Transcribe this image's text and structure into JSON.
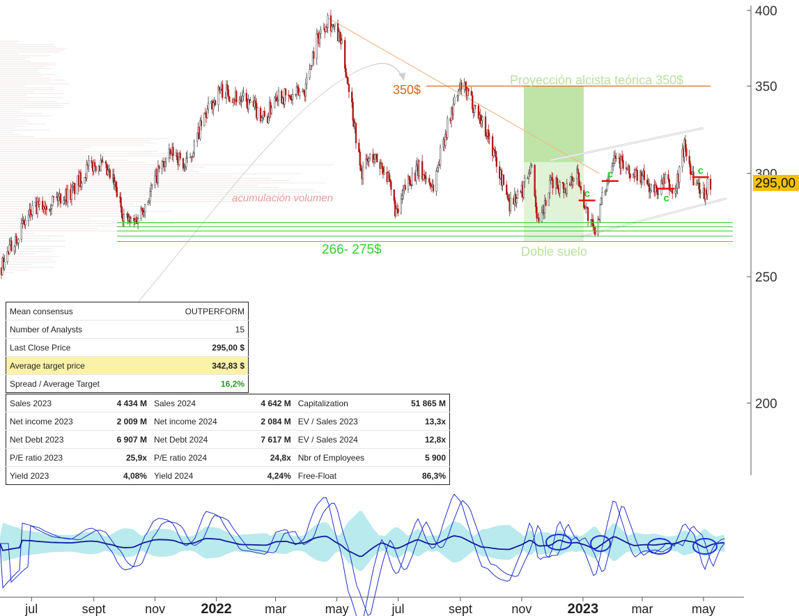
{
  "price_label": "295,00",
  "consensus": [
    {
      "label": "Mean consensus",
      "value": "OUTPERFORM",
      "style": "plain"
    },
    {
      "label": "Number of Analysts",
      "value": "15",
      "style": "plain"
    },
    {
      "label": "Last Close Price",
      "value": "295,00 $",
      "style": "bold"
    },
    {
      "label": "Average target price",
      "value": "342,83 $",
      "style": "highlight"
    },
    {
      "label": "Spread / Average Target",
      "value": "16,2%",
      "style": "green"
    }
  ],
  "fundamentals": [
    [
      "Sales 2023",
      "4 434 M",
      "Sales 2024",
      "4 642 M",
      "Capitalization",
      "51 865 M"
    ],
    [
      "Net income 2023",
      "2 009 M",
      "Net income 2024",
      "2 084 M",
      "EV / Sales 2023",
      "13,3x"
    ],
    [
      "Net Debt 2023",
      "6 907 M",
      "Net Debt 2024",
      "7 617 M",
      "EV / Sales 2024",
      "12,8x"
    ],
    [
      "P/E ratio 2023",
      "25,9x",
      "P/E ratio 2024",
      "24,8x",
      "Nbr of Employees",
      "5 900"
    ],
    [
      "Yield 2023",
      "4,08%",
      "Yield 2024",
      "4,24%",
      "Free-Float",
      "86,3%"
    ]
  ],
  "annotations": {
    "resistance": "350$",
    "projection": "Proyección alcista teórica 350$",
    "volume": "acumulación volumen",
    "support": "266- 275$",
    "double_bottom": "Doble suelo",
    "c_marks": [
      "c",
      "c",
      "c",
      "c"
    ]
  },
  "colors": {
    "candle_up": "#3a3a3a",
    "candle_down": "#b01818",
    "support_line": "#37c837",
    "resistance_line": "#d2691e",
    "projection_fill": "#a8dc8a",
    "price_box": "#f5c000",
    "oscillator_line": "#1f2fc8",
    "oscillator_band": "#7fd8df"
  },
  "chart_data": {
    "type": "candlestick",
    "y_scale": "log",
    "ylim": [
      172,
      404
    ],
    "y_ticks": [
      400,
      350,
      300,
      250,
      200
    ],
    "x_ticks": [
      "jul",
      "sept",
      "nov",
      "2022",
      "mar",
      "may",
      "jul",
      "sept",
      "nov",
      "2023",
      "mar",
      "may"
    ],
    "x_tick_dates": [
      "2021-07",
      "2021-09",
      "2021-11",
      "2022-01",
      "2022-03",
      "2022-05",
      "2022-07",
      "2022-09",
      "2022-11",
      "2023-01",
      "2023-03",
      "2023-05"
    ],
    "last_close": 295.0,
    "price_path": [
      [
        "2021-06-01",
        254
      ],
      [
        "2021-06-15",
        268
      ],
      [
        "2021-07-01",
        280
      ],
      [
        "2021-07-20",
        286
      ],
      [
        "2021-08-10",
        290
      ],
      [
        "2021-08-25",
        302
      ],
      [
        "2021-09-05",
        306
      ],
      [
        "2021-09-20",
        296
      ],
      [
        "2021-10-01",
        278
      ],
      [
        "2021-10-10",
        274
      ],
      [
        "2021-10-25",
        287
      ],
      [
        "2021-11-05",
        302
      ],
      [
        "2021-11-20",
        312
      ],
      [
        "2021-12-01",
        303
      ],
      [
        "2021-12-10",
        315
      ],
      [
        "2021-12-20",
        331
      ],
      [
        "2022-01-05",
        348
      ],
      [
        "2022-01-20",
        344
      ],
      [
        "2022-02-05",
        338
      ],
      [
        "2022-02-20",
        330
      ],
      [
        "2022-03-01",
        346
      ],
      [
        "2022-03-15",
        342
      ],
      [
        "2022-03-30",
        348
      ],
      [
        "2022-04-10",
        378
      ],
      [
        "2022-04-22",
        395
      ],
      [
        "2022-05-05",
        378
      ],
      [
        "2022-05-15",
        342
      ],
      [
        "2022-05-25",
        300
      ],
      [
        "2022-06-05",
        310
      ],
      [
        "2022-06-18",
        302
      ],
      [
        "2022-06-30",
        278
      ],
      [
        "2022-07-10",
        296
      ],
      [
        "2022-07-22",
        302
      ],
      [
        "2022-08-05",
        293
      ],
      [
        "2022-08-15",
        318
      ],
      [
        "2022-08-25",
        338
      ],
      [
        "2022-09-02",
        350
      ],
      [
        "2022-09-15",
        338
      ],
      [
        "2022-09-28",
        322
      ],
      [
        "2022-10-10",
        300
      ],
      [
        "2022-10-20",
        285
      ],
      [
        "2022-11-01",
        290
      ],
      [
        "2022-11-10",
        306
      ],
      [
        "2022-11-18",
        272
      ],
      [
        "2022-12-01",
        296
      ],
      [
        "2022-12-15",
        292
      ],
      [
        "2022-12-25",
        302
      ],
      [
        "2023-01-05",
        280
      ],
      [
        "2023-01-12",
        270
      ],
      [
        "2023-01-22",
        290
      ],
      [
        "2023-02-01",
        312
      ],
      [
        "2023-02-15",
        300
      ],
      [
        "2023-03-01",
        298
      ],
      [
        "2023-03-12",
        290
      ],
      [
        "2023-03-25",
        296
      ],
      [
        "2023-04-02",
        288
      ],
      [
        "2023-04-12",
        315
      ],
      [
        "2023-04-22",
        296
      ],
      [
        "2023-05-01",
        290
      ],
      [
        "2023-05-08",
        295
      ]
    ],
    "levels": {
      "resistance": 350,
      "support_band": [
        266,
        275
      ],
      "projection_target": 350
    }
  }
}
